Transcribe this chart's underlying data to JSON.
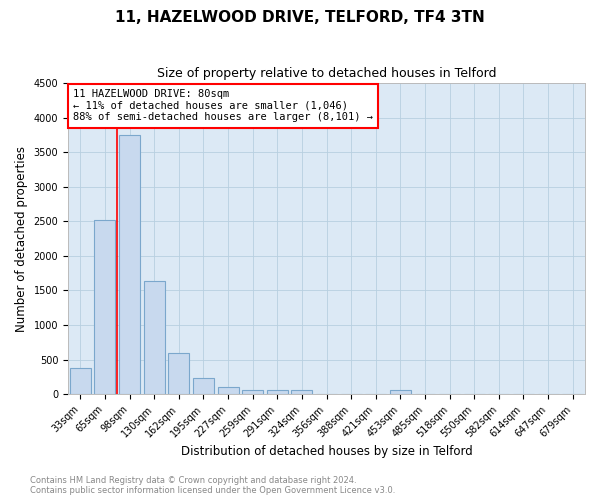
{
  "title": "11, HAZELWOOD DRIVE, TELFORD, TF4 3TN",
  "subtitle": "Size of property relative to detached houses in Telford",
  "xlabel": "Distribution of detached houses by size in Telford",
  "ylabel": "Number of detached properties",
  "categories": [
    "33sqm",
    "65sqm",
    "98sqm",
    "130sqm",
    "162sqm",
    "195sqm",
    "227sqm",
    "259sqm",
    "291sqm",
    "324sqm",
    "356sqm",
    "388sqm",
    "421sqm",
    "453sqm",
    "485sqm",
    "518sqm",
    "550sqm",
    "582sqm",
    "614sqm",
    "647sqm",
    "679sqm"
  ],
  "values": [
    375,
    2520,
    3750,
    1640,
    600,
    240,
    110,
    65,
    55,
    65,
    0,
    0,
    0,
    65,
    0,
    0,
    0,
    0,
    0,
    0,
    0
  ],
  "bar_color": "#c8d9ee",
  "bar_edge_color": "#7ba7cc",
  "red_line_x": 1.5,
  "annotation_text": "11 HAZELWOOD DRIVE: 80sqm\n← 11% of detached houses are smaller (1,046)\n88% of semi-detached houses are larger (8,101) →",
  "ylim": [
    0,
    4500
  ],
  "yticks": [
    0,
    500,
    1000,
    1500,
    2000,
    2500,
    3000,
    3500,
    4000,
    4500
  ],
  "plot_bg_color": "#dce9f5",
  "fig_bg_color": "#ffffff",
  "grid_color": "#b8cfe0",
  "footer": "Contains HM Land Registry data © Crown copyright and database right 2024.\nContains public sector information licensed under the Open Government Licence v3.0.",
  "title_fontsize": 11,
  "subtitle_fontsize": 9,
  "axis_label_fontsize": 8.5,
  "tick_fontsize": 7,
  "annotation_fontsize": 7.5,
  "footer_fontsize": 6
}
